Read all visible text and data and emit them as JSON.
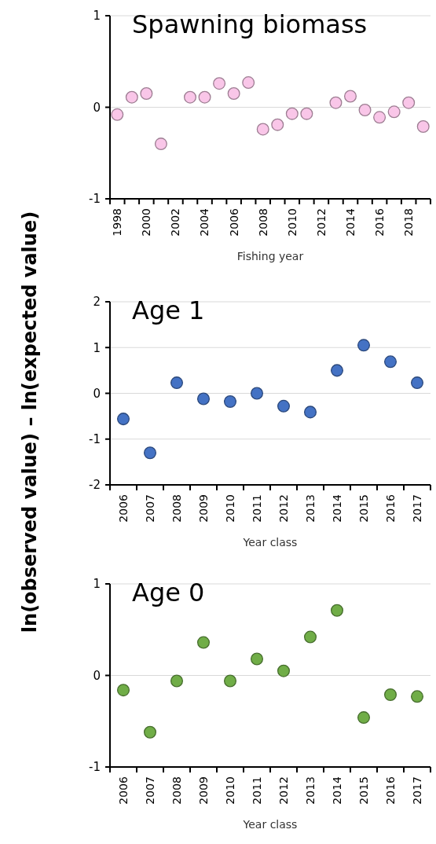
{
  "chart_data": [
    {
      "type": "scatter",
      "title": "Spawning biomass",
      "xlabel": "Fishing year",
      "ylabel": "ln(observed value) – ln(expected value)",
      "categories": [
        "1998",
        null,
        "2000",
        null,
        "2002",
        null,
        "2004",
        null,
        "2006",
        null,
        "2008",
        null,
        "2010",
        null,
        "2012",
        null,
        "2014",
        null,
        "2016",
        null,
        "2018",
        null
      ],
      "series": [
        {
          "color": "#f9c6e8",
          "values": [
            -0.08,
            0.11,
            0.15,
            -0.4,
            null,
            0.11,
            0.11,
            0.26,
            0.15,
            0.27,
            -0.24,
            -0.19,
            -0.07,
            -0.07,
            null,
            0.05,
            0.12,
            -0.03,
            -0.11,
            -0.05,
            0.05,
            -0.21
          ]
        }
      ],
      "ylim": [
        -1,
        1
      ],
      "yticks": [
        -1,
        0,
        1
      ],
      "grid": "y",
      "marker": "circle"
    },
    {
      "type": "scatter",
      "title": "Age 1",
      "xlabel": "Year class",
      "categories": [
        "2006",
        "2007",
        "2008",
        "2009",
        "2010",
        "2011",
        "2012",
        "2013",
        "2014",
        "2015",
        "2016",
        "2017"
      ],
      "series": [
        {
          "color": "#4472c4",
          "values": [
            -0.56,
            -1.3,
            0.23,
            -0.12,
            -0.18,
            0.0,
            -0.28,
            -0.41,
            0.5,
            1.05,
            0.69,
            0.23
          ]
        }
      ],
      "ylim": [
        -2,
        2
      ],
      "yticks": [
        -2,
        -1,
        0,
        1,
        2
      ],
      "grid": "y",
      "marker": "circle"
    },
    {
      "type": "scatter",
      "title": "Age 0",
      "xlabel": "Year class",
      "categories": [
        "2006",
        "2007",
        "2008",
        "2009",
        "2010",
        "2011",
        "2012",
        "2013",
        "2014",
        "2015",
        "2016",
        "2017"
      ],
      "series": [
        {
          "color": "#70ad47",
          "values": [
            -0.16,
            -0.62,
            -0.06,
            0.36,
            -0.06,
            0.18,
            0.05,
            0.42,
            0.71,
            -0.46,
            -0.21,
            -0.23
          ]
        }
      ],
      "ylim": [
        -1,
        1
      ],
      "yticks": [
        -1,
        0,
        1
      ],
      "grid": "y",
      "marker": "circle"
    }
  ]
}
